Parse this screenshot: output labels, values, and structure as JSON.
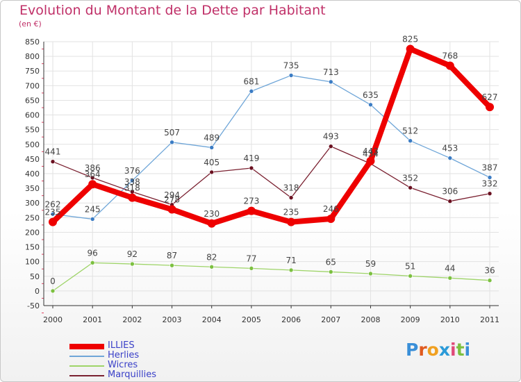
{
  "title": "Evolution du Montant de la Dette par Habitant",
  "unit_label": "(en €)",
  "logo_letters": [
    "P",
    "r",
    "o",
    "x",
    "i",
    "t",
    "i"
  ],
  "logo_colors": [
    "#3a8fd8",
    "#e05a1e",
    "#f0a020",
    "#2a9ad8",
    "#e04a78",
    "#7cc040",
    "#3a8fd8"
  ],
  "chart_data": {
    "type": "line",
    "x": [
      "2000",
      "2001",
      "2002",
      "2003",
      "2004",
      "2005",
      "2006",
      "2007",
      "2008",
      "2009",
      "2010",
      "2011"
    ],
    "ylim": [
      -50,
      850
    ],
    "yticks": [
      -50,
      0,
      50,
      100,
      150,
      200,
      250,
      300,
      350,
      400,
      450,
      500,
      550,
      600,
      650,
      700,
      750,
      800,
      850
    ],
    "grid": true,
    "legend_position": "bottom-left",
    "series": [
      {
        "name": "ILLIES",
        "color": "#ee0000",
        "marker_color": "#ee0000",
        "label_color": "#444444",
        "width": "thick",
        "values": [
          235,
          364,
          318,
          278,
          230,
          273,
          235,
          246,
          443,
          825,
          768,
          627
        ],
        "labels": [
          "235",
          "364",
          "318",
          "278",
          "230",
          "273",
          "235",
          "246",
          "443",
          "825",
          "768",
          "627"
        ]
      },
      {
        "name": "Herlies",
        "color": "#6fa6d8",
        "marker_color": "#3b7cc4",
        "label_color": "#444444",
        "width": "thin",
        "values": [
          262,
          245,
          376,
          507,
          489,
          681,
          735,
          713,
          635,
          512,
          453,
          387
        ],
        "labels": [
          "262",
          "245",
          "376",
          "507",
          "489",
          "681",
          "735",
          "713",
          "635",
          "512",
          "453",
          "387"
        ]
      },
      {
        "name": "Wicres",
        "color": "#9ed468",
        "marker_color": "#7cc040",
        "label_color": "#444444",
        "width": "thin",
        "values": [
          0,
          96,
          92,
          87,
          82,
          77,
          71,
          65,
          59,
          51,
          44,
          36
        ],
        "labels": [
          "0",
          "96",
          "92",
          "87",
          "82",
          "77",
          "71",
          "65",
          "59",
          "51",
          "44",
          "36"
        ]
      },
      {
        "name": "Marquillies",
        "color": "#7a2030",
        "marker_color": "#6a1020",
        "label_color": "#444444",
        "width": "thin",
        "values": [
          441,
          386,
          338,
          294,
          405,
          419,
          318,
          493,
          434,
          352,
          306,
          332
        ],
        "labels": [
          "441",
          "386",
          "338",
          "294",
          "405",
          "419",
          "318",
          "493",
          "434",
          "352",
          "306",
          "332"
        ]
      }
    ]
  },
  "legend": [
    {
      "label": "ILLIES",
      "color": "#ee0000",
      "text_color": "#3a40c8"
    },
    {
      "label": "Herlies",
      "color": "#6fa6d8",
      "text_color": "#3a40c8"
    },
    {
      "label": "Wicres",
      "color": "#9ed468",
      "text_color": "#3a40c8"
    },
    {
      "label": "Marquillies",
      "color": "#7a2030",
      "text_color": "#3a40c8"
    }
  ]
}
